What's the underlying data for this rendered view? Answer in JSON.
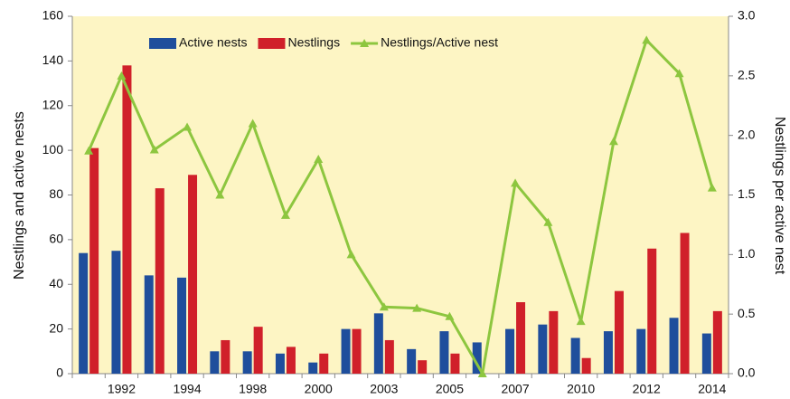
{
  "chart_data": {
    "type": "bar-line",
    "y_label": "Nestlings and active nests",
    "y2_label": "Nestlings per active nest",
    "categories": [
      null,
      "1992",
      null,
      "1994",
      null,
      "1998",
      null,
      "2000",
      null,
      "2003",
      null,
      "2005",
      null,
      "2007",
      null,
      "2010",
      null,
      "2012",
      null,
      "2014"
    ],
    "series": [
      {
        "name": "Active nests",
        "color": "#1f4e9c",
        "kind": "bar",
        "values": [
          54,
          55,
          44,
          43,
          10,
          10,
          9,
          5,
          20,
          27,
          11,
          19,
          14,
          20,
          22,
          16,
          19,
          20,
          25,
          18
        ]
      },
      {
        "name": "Nestlings",
        "color": "#d0202a",
        "kind": "bar",
        "values": [
          101,
          138,
          83,
          89,
          15,
          21,
          12,
          9,
          20,
          15,
          6,
          9,
          0,
          32,
          28,
          7,
          37,
          56,
          63,
          28
        ]
      },
      {
        "name": "Nestlings/Active nest",
        "color": "#8dc63f",
        "kind": "line",
        "axis": "y2",
        "values": [
          1.87,
          2.5,
          1.88,
          2.07,
          1.5,
          2.1,
          1.33,
          1.8,
          1.0,
          0.56,
          0.55,
          0.48,
          0.0,
          1.6,
          1.27,
          0.44,
          1.95,
          2.8,
          2.52,
          1.56
        ]
      }
    ],
    "ylim": [
      0,
      160
    ],
    "yticks": [
      0,
      20,
      40,
      60,
      80,
      100,
      120,
      140,
      160
    ],
    "y2lim": [
      0,
      3
    ],
    "y2ticks": [
      {
        "value": 0,
        "label": "0.0"
      },
      {
        "value": 0.5,
        "label": "0.5"
      },
      {
        "value": 1,
        "label": "1.0"
      },
      {
        "value": 1.5,
        "label": "1.5"
      },
      {
        "value": 2,
        "label": "2.0"
      },
      {
        "value": 2.5,
        "label": "2.5"
      },
      {
        "value": 3,
        "label": "3.0"
      }
    ],
    "legend": "top",
    "plot_background": "#fdf5c4"
  }
}
